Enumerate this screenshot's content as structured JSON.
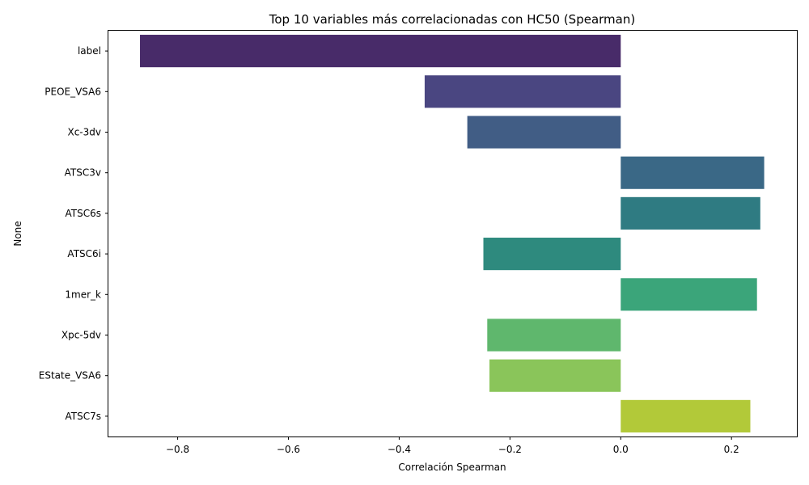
{
  "chart_data": {
    "type": "bar",
    "orientation": "horizontal",
    "title": "Top 10 variables más correlacionadas con HC50 (Spearman)",
    "xlabel": "Correlación Spearman",
    "ylabel": "None",
    "categories": [
      "label",
      "PEOE_VSA6",
      "Xc-3dv",
      "ATSC3v",
      "ATSC6s",
      "ATSC6i",
      "1mer_k",
      "Xpc-5dv",
      "EState_VSA6",
      "ATSC7s"
    ],
    "values": [
      -0.868,
      -0.354,
      -0.277,
      0.259,
      0.252,
      -0.248,
      0.246,
      -0.241,
      -0.237,
      0.234
    ],
    "colors": [
      "#482b69",
      "#4a4681",
      "#415d85",
      "#3a6886",
      "#2f7b82",
      "#2e8a7e",
      "#3ba57a",
      "#5fb76d",
      "#8ac55a",
      "#b2c939"
    ],
    "xlim": [
      -0.925,
      0.318
    ],
    "xticks": [
      -0.8,
      -0.6,
      -0.4,
      -0.2,
      0.0,
      0.2
    ],
    "xtick_labels": [
      "−0.8",
      "−0.6",
      "−0.4",
      "−0.2",
      "0.0",
      "0.2"
    ],
    "grid": false,
    "legend": "none"
  }
}
